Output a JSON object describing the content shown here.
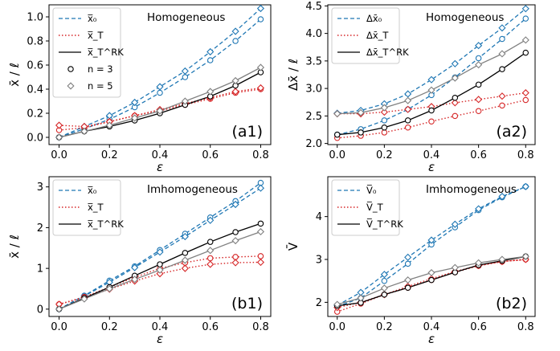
{
  "colors": {
    "x0": "#1f77b4",
    "xT": "#d62728",
    "rk": "#000000",
    "n3": "#000000",
    "n5": "#808080"
  },
  "chart_data": [
    {
      "id": "a1",
      "type": "line",
      "tag": "(a1)",
      "title": "Homogeneous",
      "xlabel": "ε",
      "ylabel": "x̄ / ℓ",
      "xlim": [
        -0.04,
        0.84
      ],
      "ylim": [
        -0.06,
        1.1
      ],
      "xticks": [
        0.0,
        0.2,
        0.4,
        0.6,
        0.8
      ],
      "xtick_labels": [
        "0.0",
        "0.2",
        "0.4",
        "0.6",
        "0.8"
      ],
      "yticks": [
        0.0,
        0.2,
        0.4,
        0.6,
        0.8,
        1.0
      ],
      "ytick_labels": [
        "0.0",
        "0.2",
        "0.4",
        "0.6",
        "0.8",
        "1.0"
      ],
      "legend": {
        "items": [
          {
            "label": "x̅₀",
            "style": "dashed",
            "color": "#1f77b4"
          },
          {
            "label": "x̅_T",
            "style": "dotted",
            "color": "#d62728"
          },
          {
            "label": "x̅_T^RK",
            "style": "solid",
            "color": "#000000"
          },
          {
            "label": "n = 3",
            "style": "circle",
            "color": "#000000"
          },
          {
            "label": "n = 5",
            "style": "diamond",
            "color": "#808080"
          }
        ]
      },
      "x": [
        0.0,
        0.1,
        0.2,
        0.3,
        0.4,
        0.5,
        0.6,
        0.7,
        0.8
      ],
      "series": [
        {
          "kind": "x0",
          "marker": "circle",
          "values": [
            0.0,
            0.07,
            0.15,
            0.25,
            0.37,
            0.5,
            0.64,
            0.8,
            0.98
          ]
        },
        {
          "kind": "x0",
          "marker": "diamond",
          "values": [
            0.0,
            0.09,
            0.18,
            0.29,
            0.42,
            0.55,
            0.71,
            0.88,
            1.07
          ]
        },
        {
          "kind": "xT",
          "marker": "circle",
          "values": [
            0.06,
            0.08,
            0.13,
            0.18,
            0.22,
            0.27,
            0.32,
            0.37,
            0.4
          ]
        },
        {
          "kind": "xT",
          "marker": "diamond",
          "values": [
            0.1,
            0.09,
            0.13,
            0.18,
            0.23,
            0.28,
            0.33,
            0.38,
            0.41
          ]
        },
        {
          "kind": "rk",
          "marker": "circle",
          "values": [
            0.0,
            0.05,
            0.09,
            0.14,
            0.2,
            0.27,
            0.34,
            0.43,
            0.54
          ]
        },
        {
          "kind": "rk5",
          "marker": "diamond",
          "values": [
            0.0,
            0.05,
            0.1,
            0.16,
            0.22,
            0.3,
            0.38,
            0.47,
            0.58
          ]
        }
      ]
    },
    {
      "id": "a2",
      "type": "line",
      "tag": "(a2)",
      "title": "Homogeneous",
      "xlabel": "ε",
      "ylabel": "Δx̄ / ℓ",
      "xlim": [
        -0.04,
        0.84
      ],
      "ylim": [
        1.98,
        4.52
      ],
      "xticks": [
        0.0,
        0.2,
        0.4,
        0.6,
        0.8
      ],
      "xtick_labels": [
        "0.0",
        "0.2",
        "0.4",
        "0.6",
        "0.8"
      ],
      "yticks": [
        2.0,
        2.5,
        3.0,
        3.5,
        4.0,
        4.5
      ],
      "ytick_labels": [
        "2.0",
        "2.5",
        "3.0",
        "3.5",
        "4.0",
        "4.5"
      ],
      "legend": {
        "items": [
          {
            "label": "Δx̄₀",
            "style": "dashed",
            "color": "#1f77b4"
          },
          {
            "label": "Δx̄_T",
            "style": "dotted",
            "color": "#d62728"
          },
          {
            "label": "Δx̄_T^RK",
            "style": "solid",
            "color": "#000000"
          }
        ]
      },
      "x": [
        0.0,
        0.1,
        0.2,
        0.3,
        0.4,
        0.5,
        0.6,
        0.7,
        0.8
      ],
      "series": [
        {
          "kind": "x0",
          "marker": "circle",
          "values": [
            2.16,
            2.26,
            2.42,
            2.62,
            2.88,
            3.2,
            3.55,
            3.9,
            4.27
          ]
        },
        {
          "kind": "x0",
          "marker": "diamond",
          "values": [
            2.55,
            2.6,
            2.72,
            2.9,
            3.16,
            3.45,
            3.78,
            4.1,
            4.45
          ]
        },
        {
          "kind": "xT",
          "marker": "circle",
          "values": [
            2.1,
            2.14,
            2.2,
            2.29,
            2.4,
            2.5,
            2.59,
            2.69,
            2.79
          ]
        },
        {
          "kind": "xT",
          "marker": "diamond",
          "values": [
            2.54,
            2.54,
            2.57,
            2.62,
            2.67,
            2.74,
            2.8,
            2.86,
            2.92
          ]
        },
        {
          "kind": "rk",
          "marker": "circle",
          "values": [
            2.16,
            2.2,
            2.29,
            2.42,
            2.6,
            2.83,
            3.07,
            3.35,
            3.65
          ]
        },
        {
          "kind": "rk5",
          "marker": "diamond",
          "values": [
            2.54,
            2.56,
            2.65,
            2.78,
            2.97,
            3.19,
            3.43,
            3.63,
            3.88
          ]
        }
      ]
    },
    {
      "id": "b1",
      "type": "line",
      "tag": "(b1)",
      "title": "Imhomogeneous",
      "xlabel": "ε",
      "ylabel": "x̄ / ℓ",
      "xlim": [
        -0.04,
        0.84
      ],
      "ylim": [
        -0.18,
        3.25
      ],
      "xticks": [
        0.0,
        0.2,
        0.4,
        0.6,
        0.8
      ],
      "xtick_labels": [
        "0.0",
        "0.2",
        "0.4",
        "0.6",
        "0.8"
      ],
      "yticks": [
        0,
        1,
        2,
        3
      ],
      "ytick_labels": [
        "0",
        "1",
        "2",
        "3"
      ],
      "legend": {
        "items": [
          {
            "label": "x̅₀",
            "style": "dashed",
            "color": "#1f77b4"
          },
          {
            "label": "x̅_T",
            "style": "dotted",
            "color": "#d62728"
          },
          {
            "label": "x̅_T^RK",
            "style": "solid",
            "color": "#000000"
          }
        ]
      },
      "x": [
        0.0,
        0.1,
        0.2,
        0.3,
        0.4,
        0.5,
        0.6,
        0.7,
        0.8
      ],
      "series": [
        {
          "kind": "x0",
          "marker": "circle",
          "values": [
            0.0,
            0.33,
            0.7,
            1.05,
            1.45,
            1.85,
            2.25,
            2.65,
            3.1
          ]
        },
        {
          "kind": "x0",
          "marker": "diamond",
          "values": [
            0.0,
            0.32,
            0.66,
            1.02,
            1.4,
            1.78,
            2.18,
            2.57,
            2.97
          ]
        },
        {
          "kind": "xT",
          "marker": "circle",
          "values": [
            0.12,
            0.3,
            0.54,
            0.78,
            1.0,
            1.14,
            1.25,
            1.28,
            1.3
          ]
        },
        {
          "kind": "xT",
          "marker": "diamond",
          "values": [
            0.12,
            0.28,
            0.49,
            0.69,
            0.87,
            1.0,
            1.1,
            1.14,
            1.15
          ]
        },
        {
          "kind": "rk",
          "marker": "circle",
          "values": [
            0.0,
            0.27,
            0.54,
            0.82,
            1.1,
            1.38,
            1.65,
            1.89,
            2.1
          ]
        },
        {
          "kind": "rk5",
          "marker": "diamond",
          "values": [
            0.0,
            0.25,
            0.5,
            0.73,
            0.96,
            1.2,
            1.44,
            1.68,
            1.9
          ]
        }
      ]
    },
    {
      "id": "b2",
      "type": "line",
      "tag": "(b2)",
      "title": "Imhomogeneous",
      "xlabel": "ε",
      "ylabel": "V̄",
      "xlim": [
        -0.04,
        0.84
      ],
      "ylim": [
        1.67,
        4.93
      ],
      "xticks": [
        0.0,
        0.2,
        0.4,
        0.6,
        0.8
      ],
      "xtick_labels": [
        "0.0",
        "0.2",
        "0.4",
        "0.6",
        "0.8"
      ],
      "yticks": [
        2,
        3,
        4
      ],
      "ytick_labels": [
        "2",
        "3",
        "4"
      ],
      "legend": {
        "items": [
          {
            "label": "V̅₀",
            "style": "dashed",
            "color": "#1f77b4"
          },
          {
            "label": "V̅_T",
            "style": "dotted",
            "color": "#d62728"
          },
          {
            "label": "V̅_T^RK",
            "style": "solid",
            "color": "#000000"
          }
        ]
      },
      "x": [
        0.0,
        0.1,
        0.2,
        0.3,
        0.4,
        0.5,
        0.6,
        0.7,
        0.8
      ],
      "series": [
        {
          "kind": "x0",
          "marker": "circle",
          "values": [
            1.9,
            2.1,
            2.5,
            2.9,
            3.35,
            3.75,
            4.15,
            4.45,
            4.7
          ]
        },
        {
          "kind": "x0",
          "marker": "diamond",
          "values": [
            1.93,
            2.23,
            2.65,
            3.05,
            3.45,
            3.82,
            4.18,
            4.47,
            4.7
          ]
        },
        {
          "kind": "xT",
          "marker": "circle",
          "values": [
            1.78,
            1.97,
            2.18,
            2.34,
            2.52,
            2.7,
            2.85,
            2.95,
            3.0
          ]
        },
        {
          "kind": "xT",
          "marker": "diamond",
          "values": [
            1.88,
            2.0,
            2.18,
            2.37,
            2.55,
            2.72,
            2.86,
            2.95,
            3.0
          ]
        },
        {
          "kind": "rk",
          "marker": "circle",
          "values": [
            1.92,
            1.99,
            2.18,
            2.34,
            2.52,
            2.7,
            2.87,
            2.97,
            3.07
          ]
        },
        {
          "kind": "rk5",
          "marker": "diamond",
          "values": [
            1.95,
            2.1,
            2.33,
            2.52,
            2.69,
            2.81,
            2.92,
            3.0,
            3.07
          ]
        }
      ]
    }
  ]
}
